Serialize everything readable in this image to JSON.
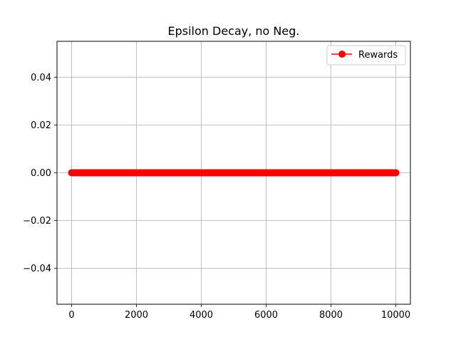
{
  "chart_data": {
    "type": "line",
    "title": "Epsilon Decay, no Neg.",
    "xlabel": "",
    "ylabel": "",
    "xlim": [
      -450,
      10450
    ],
    "ylim": [
      -0.055,
      0.055
    ],
    "x_ticks": [
      0,
      2000,
      4000,
      6000,
      8000,
      10000
    ],
    "x_tick_labels": [
      "0",
      "2000",
      "4000",
      "6000",
      "8000",
      "10000"
    ],
    "y_ticks": [
      -0.04,
      -0.02,
      0.0,
      0.02,
      0.04
    ],
    "y_tick_labels": [
      "−0.04",
      "−0.02",
      "0.00",
      "0.02",
      "0.04"
    ],
    "grid": true,
    "legend": {
      "placement": "upper-right"
    },
    "series": [
      {
        "name": "Rewards",
        "color": "#ff0000",
        "marker": "circle",
        "x_range": [
          0,
          10000
        ],
        "y_constant": 0
      }
    ]
  }
}
